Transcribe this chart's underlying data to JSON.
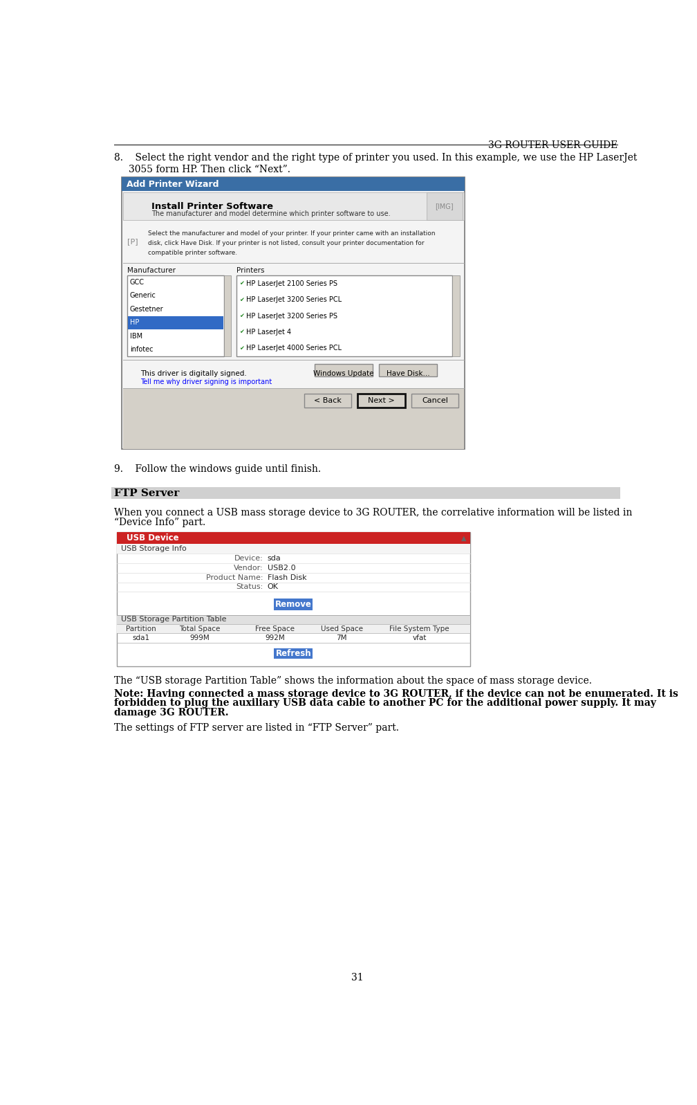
{
  "page_title": "3G ROUTER USER GUIDE",
  "body_fontsize": 10,
  "background_color": "#ffffff",
  "section_ftp_title": "FTP Server",
  "item8_text1": "8.    Select the right vendor and the right type of printer you used. In this example, we use the HP LaserJet",
  "item8_text2": "3055 form HP. Then click “Next”.",
  "item9_text": "9.    Follow the windows guide until finish.",
  "para1": "When you connect a USB mass storage device to 3G ROUTER, the correlative information will be listed in",
  "para1b": "“Device Info” part.",
  "usb_device_bar_text": "USB Device",
  "usb_storage_info_label": "USB Storage Info",
  "device_label": "Device:",
  "device_value": "sda",
  "vendor_label": "Vendor:",
  "vendor_value": "USB2.0",
  "product_label": "Product Name:",
  "product_value": "Flash Disk",
  "status_label": "Status:",
  "status_value": "OK",
  "remove_btn_text": "Remove",
  "partition_table_label": "USB Storage Partition Table",
  "col_partition": "Partition",
  "col_total": "Total Space",
  "col_free": "Free Space",
  "col_used": "Used Space",
  "col_fs": "File System Type",
  "row_partition": "sda1",
  "row_total": "999M",
  "row_free": "992M",
  "row_used": "7M",
  "row_fs": "vfat",
  "refresh_btn_text": "Refresh",
  "note_bold_text": "Note: Having connected a mass storage device to 3G ROUTER, if the device can not be enumerated. It is",
  "note_bold_text2": "forbidden to plug the auxiliary USB data cable to another PC for the additional power supply. It may",
  "note_bold_text3": "damage 3G ROUTER.",
  "para2": "The settings of FTP server are listed in “FTP Server” part.",
  "partition_table_note": "The “USB storage Partition Table” shows the information about the space of mass storage device.",
  "page_number": "31",
  "wizard_title_text": "Add Printer Wizard",
  "manufacturers": [
    "GCC",
    "Generic",
    "Gestetner",
    "HP",
    "IBM",
    "infotec"
  ],
  "printers": [
    "HP LaserJet 2100 Series PS",
    "HP LaserJet 3200 Series PCL",
    "HP LaserJet 3200 Series PS",
    "HP LaserJet 4",
    "HP LaserJet 4000 Series PCL"
  ]
}
